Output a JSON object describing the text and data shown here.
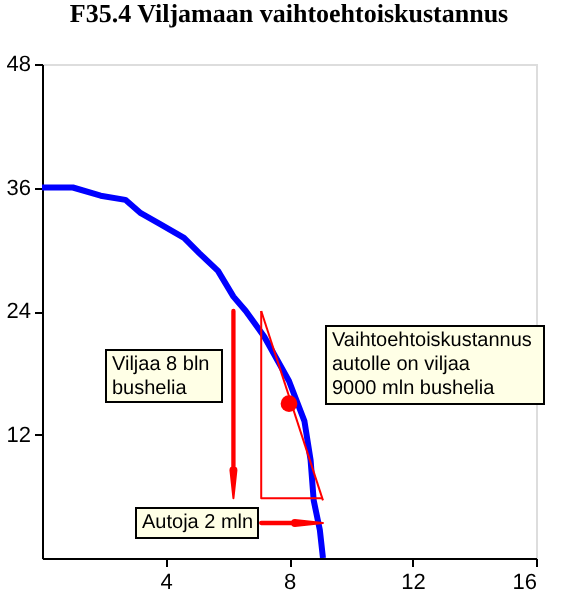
{
  "chart_data": {
    "type": "line",
    "title": "F35.4 Viljamaan vaihtoehtoiskustannus",
    "annotations": [
      "Viljaa 8 bln\nbushelia",
      "Vaihtoehtoiskustannus\nautolle on viljaa\n9000 mln bushelia",
      "Autoja 2 mln"
    ],
    "series": [
      {
        "color": "#0000ff",
        "x": [
          0,
          1,
          1.9,
          2.7,
          3.2,
          3.8,
          4.6,
          5.1,
          5.7,
          6.2,
          6.6,
          7.2,
          8,
          8.5,
          8.7,
          8.8,
          9,
          9.1
        ],
        "values": [
          36,
          36,
          35.2,
          34.8,
          33.5,
          32.5,
          31.1,
          29.6,
          27.9,
          25.4,
          24,
          21.5,
          17.2,
          13.3,
          9.5,
          5.6,
          2.7,
          0
        ]
      },
      {
        "color": "#ff0000",
        "x": [
          7.1,
          9.1
        ],
        "values": [
          24,
          5.6
        ]
      },
      {
        "color": "#ff0000",
        "x": [
          7.1,
          7.1,
          9.1
        ],
        "values": [
          24,
          5.8,
          5.8
        ]
      },
      {
        "type": "scatter",
        "color": "#ff0000",
        "marker": "circle",
        "x": [
          8
        ],
        "values": [
          15
        ]
      }
    ],
    "xlim": [
      0,
      16
    ],
    "xticks": [
      4,
      8,
      12,
      16
    ],
    "ylim": [
      0,
      48
    ],
    "yticks": [
      12,
      24,
      36,
      48
    ],
    "grid": false
  }
}
